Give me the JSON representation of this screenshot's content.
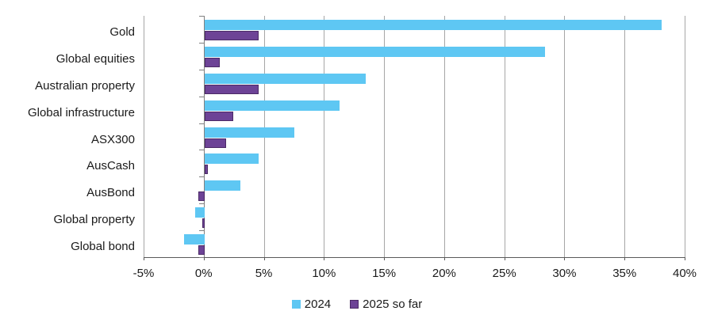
{
  "chart_data": {
    "type": "bar",
    "orientation": "horizontal",
    "title": "",
    "xlabel": "",
    "ylabel": "",
    "xlim": [
      -5,
      40
    ],
    "grid": "vertical",
    "legend_position": "bottom",
    "categories": [
      "Gold",
      "Global equities",
      "Australian property",
      "Global infrastructure",
      "ASX300",
      "AusCash",
      "AusBond",
      "Global property",
      "Global bond"
    ],
    "series": [
      {
        "name": "2024",
        "color": "#5EC7F3",
        "border_color": "#5EC7F3",
        "values": [
          38.0,
          28.3,
          13.4,
          11.2,
          7.5,
          4.5,
          3.0,
          -0.8,
          -1.7
        ]
      },
      {
        "name": "2025 so far",
        "color": "#6D4396",
        "border_color": "#4B2A66",
        "values": [
          4.5,
          1.3,
          4.5,
          2.4,
          1.8,
          0.3,
          -0.5,
          -0.2,
          -0.5
        ]
      }
    ],
    "x_ticks": [
      {
        "value": -5,
        "label": "-5%"
      },
      {
        "value": 0,
        "label": "0%"
      },
      {
        "value": 5,
        "label": "5%"
      },
      {
        "value": 10,
        "label": "10%"
      },
      {
        "value": 15,
        "label": "15%"
      },
      {
        "value": 20,
        "label": "20%"
      },
      {
        "value": 25,
        "label": "25%"
      },
      {
        "value": 30,
        "label": "30%"
      },
      {
        "value": 35,
        "label": "35%"
      },
      {
        "value": 40,
        "label": "40%"
      }
    ]
  },
  "colors": {
    "background": "#FFFFFF",
    "gridline": "#A6A6A6",
    "zero_line": "#808080",
    "axis_line": "#595959",
    "text": "#1A1A1A"
  }
}
